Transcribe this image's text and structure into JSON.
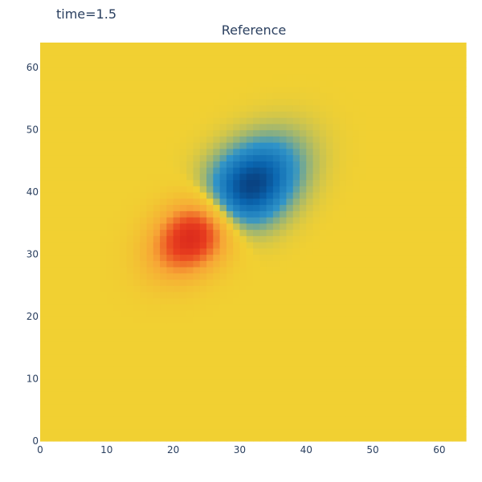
{
  "frame_label": "time=1.5",
  "chart_data": {
    "type": "heatmap",
    "title": "Reference",
    "xlabel": "",
    "ylabel": "",
    "grid_size": [
      64,
      64
    ],
    "xlim": [
      0,
      64
    ],
    "ylim": [
      0,
      64
    ],
    "x_ticks": [
      0,
      10,
      20,
      30,
      40,
      50,
      60
    ],
    "y_ticks": [
      0,
      10,
      20,
      30,
      40,
      50,
      60
    ],
    "background_value": 0,
    "colorscale": [
      "#08306b",
      "#0a66b0",
      "#2f93c8",
      "#f1d032",
      "#f7a536",
      "#e9401f",
      "#d0191a"
    ],
    "features": [
      {
        "name": "positive lobe (red)",
        "center": [
          23,
          33
        ],
        "peak": 1.0,
        "spread": [
          3.6,
          5.2
        ],
        "orientation_deg": -45
      },
      {
        "name": "negative lobe (blue)",
        "center": [
          30.5,
          40
        ],
        "peak": -1.0,
        "spread": [
          3.8,
          5.8
        ],
        "orientation_deg": -45
      }
    ]
  }
}
